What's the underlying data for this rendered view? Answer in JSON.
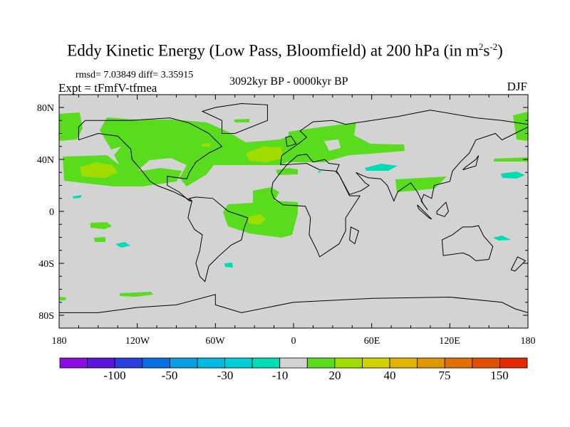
{
  "title": {
    "main": "Eddy Kinetic Energy (Low Pass, Bloomfield) at 200 hPa (in m",
    "sup1": "2",
    "mid": "s",
    "sup2": "-2",
    "end": ")"
  },
  "stats": "rmsd= 7.03849 diff= 3.35915",
  "experiment": "Expt = tFmfV-tfmea",
  "period": "3092kyr BP - 0000kyr BP",
  "season": "DJF",
  "map": {
    "lon_labels": [
      "180",
      "120W",
      "60W",
      "0",
      "60E",
      "120E",
      "180"
    ],
    "lat_labels": [
      "80N",
      "40N",
      "0",
      "40S",
      "80S"
    ],
    "land_color": "#d3d3d3"
  },
  "colorbar": {
    "colors": [
      "#8a0ee0",
      "#5a14dc",
      "#2a3fdc",
      "#0a6fe0",
      "#0a9de0",
      "#00b9e0",
      "#00ccd8",
      "#00dcb4",
      "#d3d3d3",
      "#5adc1e",
      "#a0dc00",
      "#d2d200",
      "#e1b400",
      "#e19600",
      "#e17000",
      "#e15000",
      "#e12a00"
    ],
    "labels": [
      "-100",
      "-50",
      "-30",
      "-10",
      "20",
      "40",
      "75",
      "150"
    ]
  }
}
